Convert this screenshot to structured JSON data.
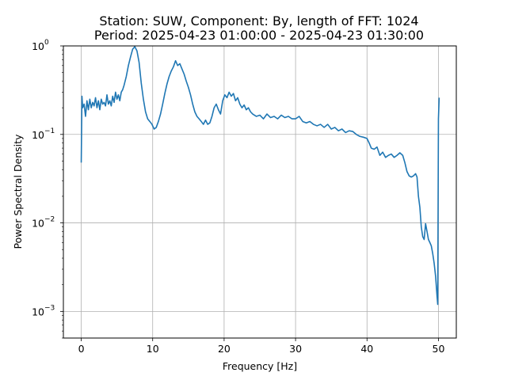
{
  "chart_data": {
    "type": "line",
    "title_line1": "Station: SUW, Component: By, length of FFT: 1024",
    "title_line2": "Period: 2025-04-23 01:00:00 - 2025-04-23 01:30:00",
    "xlabel": "Frequency [Hz]",
    "ylabel": "Power Spectral Density",
    "xlim": [
      -2.5,
      52.5
    ],
    "ylim": [
      0.0005,
      1.0
    ],
    "yscale": "log",
    "grid": true,
    "xticks": [
      0,
      10,
      20,
      30,
      40,
      50
    ],
    "yticks": [
      {
        "value": 0.001,
        "base": "10",
        "exp": "−3"
      },
      {
        "value": 0.01,
        "base": "10",
        "exp": "−2"
      },
      {
        "value": 0.1,
        "base": "10",
        "exp": "−1"
      },
      {
        "value": 1.0,
        "base": "10",
        "exp": "0"
      }
    ],
    "line_color": "#1f77b4",
    "series": [
      {
        "x": [
          0,
          0.1,
          0.2,
          0.4,
          0.6,
          0.8,
          1.0,
          1.2,
          1.4,
          1.6,
          1.8,
          2.0,
          2.2,
          2.4,
          2.6,
          2.8,
          3.0,
          3.2,
          3.4,
          3.6,
          3.8,
          4.0,
          4.2,
          4.4,
          4.6,
          4.8,
          5.0,
          5.2,
          5.4,
          5.6,
          5.8,
          6.0,
          6.3,
          6.6,
          6.9,
          7.2,
          7.5,
          7.8,
          8.1,
          8.4,
          8.7,
          9.0,
          9.3,
          9.6,
          9.9,
          10.2,
          10.5,
          10.8,
          11.1,
          11.4,
          11.7,
          12.0,
          12.3,
          12.6,
          12.9,
          13.2,
          13.5,
          13.8,
          14.1,
          14.4,
          14.7,
          15.0,
          15.3,
          15.6,
          15.9,
          16.2,
          16.5,
          16.8,
          17.1,
          17.4,
          17.7,
          18.0,
          18.3,
          18.6,
          18.9,
          19.2,
          19.5,
          19.8,
          20.1,
          20.4,
          20.7,
          21.0,
          21.3,
          21.6,
          21.9,
          22.2,
          22.5,
          22.8,
          23.1,
          23.4,
          23.7,
          24.0,
          24.5,
          25.0,
          25.5,
          26.0,
          26.5,
          27.0,
          27.5,
          28.0,
          28.5,
          29.0,
          29.5,
          30.0,
          30.5,
          31.0,
          31.5,
          32.0,
          32.5,
          33.0,
          33.5,
          34.0,
          34.5,
          35.0,
          35.5,
          36.0,
          36.5,
          37.0,
          37.5,
          38.0,
          38.5,
          39.0,
          39.5,
          40.0,
          40.3,
          40.6,
          41.0,
          41.4,
          41.8,
          42.2,
          42.6,
          43.0,
          43.4,
          43.8,
          44.2,
          44.6,
          45.0,
          45.3,
          45.6,
          45.9,
          46.2,
          46.5,
          46.8,
          47.0,
          47.2,
          47.4,
          47.6,
          47.8,
          48.0,
          48.2,
          48.4,
          48.6,
          48.8,
          49.0,
          49.2,
          49.4,
          49.6,
          49.8,
          49.9,
          50.0,
          50.1
        ],
        "y": [
          0.048,
          0.27,
          0.2,
          0.22,
          0.16,
          0.24,
          0.19,
          0.25,
          0.2,
          0.23,
          0.21,
          0.26,
          0.2,
          0.24,
          0.19,
          0.25,
          0.22,
          0.23,
          0.21,
          0.28,
          0.22,
          0.24,
          0.21,
          0.27,
          0.23,
          0.3,
          0.25,
          0.28,
          0.24,
          0.3,
          0.32,
          0.36,
          0.45,
          0.6,
          0.75,
          0.92,
          0.98,
          0.88,
          0.65,
          0.38,
          0.25,
          0.18,
          0.15,
          0.14,
          0.13,
          0.115,
          0.12,
          0.14,
          0.17,
          0.22,
          0.29,
          0.37,
          0.45,
          0.52,
          0.58,
          0.68,
          0.6,
          0.63,
          0.55,
          0.48,
          0.4,
          0.34,
          0.28,
          0.22,
          0.18,
          0.16,
          0.15,
          0.14,
          0.13,
          0.145,
          0.13,
          0.135,
          0.16,
          0.2,
          0.22,
          0.19,
          0.17,
          0.24,
          0.28,
          0.26,
          0.3,
          0.27,
          0.29,
          0.24,
          0.26,
          0.22,
          0.2,
          0.215,
          0.19,
          0.2,
          0.18,
          0.17,
          0.16,
          0.165,
          0.15,
          0.17,
          0.155,
          0.16,
          0.15,
          0.165,
          0.155,
          0.16,
          0.15,
          0.15,
          0.16,
          0.14,
          0.135,
          0.14,
          0.13,
          0.125,
          0.13,
          0.12,
          0.13,
          0.115,
          0.12,
          0.11,
          0.115,
          0.105,
          0.11,
          0.108,
          0.1,
          0.095,
          0.093,
          0.09,
          0.08,
          0.07,
          0.068,
          0.072,
          0.058,
          0.063,
          0.055,
          0.058,
          0.06,
          0.055,
          0.058,
          0.062,
          0.058,
          0.048,
          0.038,
          0.034,
          0.033,
          0.034,
          0.036,
          0.033,
          0.02,
          0.015,
          0.009,
          0.007,
          0.0065,
          0.0098,
          0.008,
          0.0065,
          0.006,
          0.0055,
          0.0045,
          0.0035,
          0.0025,
          0.0015,
          0.0012,
          0.15,
          0.26
        ]
      }
    ]
  }
}
